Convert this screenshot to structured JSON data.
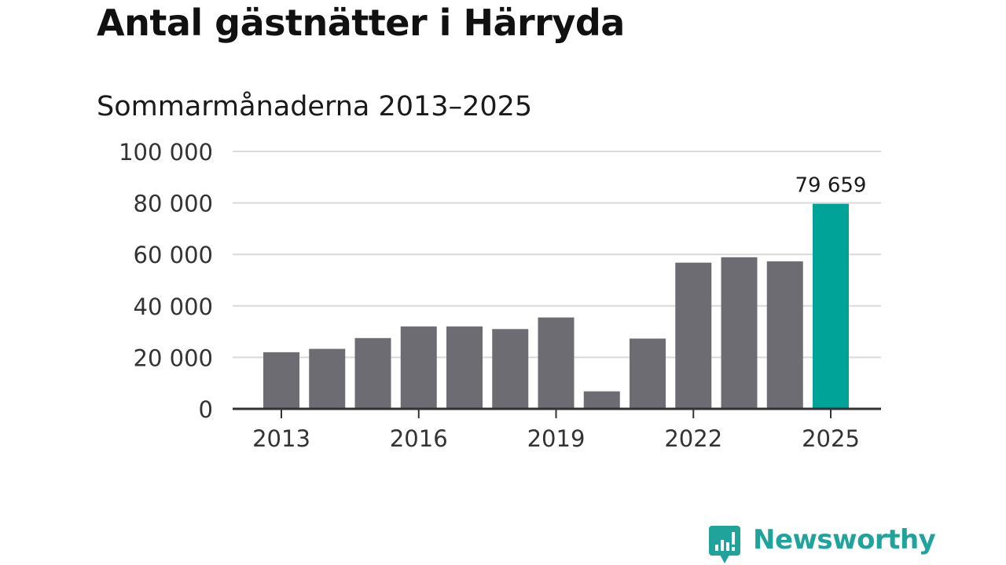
{
  "header": {
    "title": "Antal gästnätter i Härryda",
    "subtitle": "Sommarmånaderna 2013–2025"
  },
  "brand": {
    "name": "Newsworthy",
    "icon": "newsworthy-logo-icon",
    "color": "#1fa39a"
  },
  "colors": {
    "bar": "#6d6c72",
    "highlight": "#00a398",
    "grid": "#d9d9d9",
    "axis": "#333333"
  },
  "chart_data": {
    "type": "bar",
    "title": "Antal gästnätter i Härryda",
    "subtitle": "Sommarmånaderna 2013–2025",
    "categories": [
      "2013",
      "2014",
      "2015",
      "2016",
      "2017",
      "2018",
      "2019",
      "2020",
      "2021",
      "2022",
      "2023",
      "2024",
      "2025"
    ],
    "values": [
      22000,
      23300,
      27500,
      32000,
      32000,
      31000,
      35500,
      6800,
      27300,
      56800,
      58900,
      57300,
      79659
    ],
    "highlight_index": 12,
    "data_labels": [
      {
        "index": 12,
        "text": "79 659"
      }
    ],
    "x_tick_labels": [
      "2013",
      "2016",
      "2019",
      "2022",
      "2025"
    ],
    "y_tick_labels": [
      "0",
      "20 000",
      "40 000",
      "60 000",
      "80 000",
      "100 000"
    ],
    "y_ticks": [
      0,
      20000,
      40000,
      60000,
      80000,
      100000
    ],
    "ylim": [
      0,
      100000
    ],
    "xlabel": "",
    "ylabel": "",
    "grid": true,
    "legend": "none"
  }
}
